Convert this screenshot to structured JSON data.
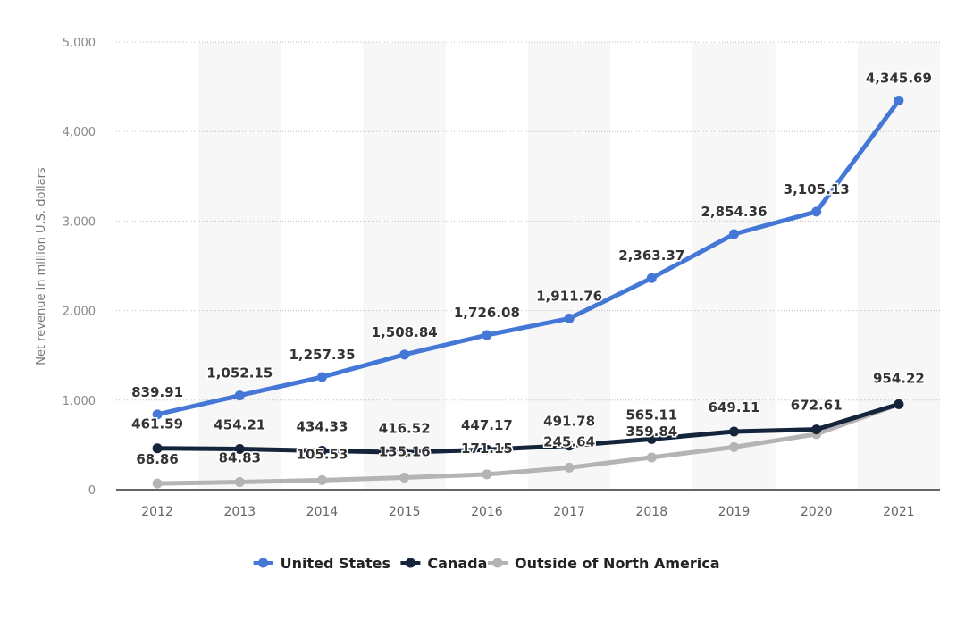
{
  "chart_data": {
    "type": "line",
    "title": "",
    "xlabel": "",
    "ylabel": "Net revenue in million U.S. dollars",
    "categories": [
      "2012",
      "2013",
      "2014",
      "2015",
      "2016",
      "2017",
      "2018",
      "2019",
      "2020",
      "2021"
    ],
    "ylim": [
      0,
      5000
    ],
    "yticks": [
      0,
      1000,
      2000,
      3000,
      4000,
      5000
    ],
    "ytick_labels": [
      "0",
      "1,000",
      "2,000",
      "3,000",
      "4,000",
      "5,000"
    ],
    "grid": true,
    "legend_position": "bottom-center",
    "series": [
      {
        "name": "United States",
        "color": "#4477d6",
        "values": [
          839.91,
          1052.15,
          1257.35,
          1508.84,
          1726.08,
          1911.76,
          2363.37,
          2854.36,
          3105.13,
          4345.69
        ],
        "labels": [
          "839.91",
          "1,052.15",
          "1,257.35",
          "1,508.84",
          "1,726.08",
          "1,911.76",
          "2,363.37",
          "2,854.36",
          "3,105.13",
          "4,345.69"
        ]
      },
      {
        "name": "Canada",
        "color": "#14243a",
        "values": [
          461.59,
          454.21,
          434.33,
          416.52,
          447.17,
          491.78,
          565.11,
          649.11,
          672.61,
          954.22
        ],
        "labels": [
          "461.59",
          "454.21",
          "434.33",
          "416.52",
          "447.17",
          "491.78",
          "565.11",
          "649.11",
          "672.61",
          "954.22"
        ]
      },
      {
        "name": "Outside of North America",
        "color": "#b4b4b4",
        "values": [
          68.86,
          84.83,
          105.53,
          135.16,
          171.15,
          245.64,
          359.84,
          475,
          620,
          954.22
        ],
        "labels": [
          "68.86",
          "84.83",
          "105.53",
          "135.16",
          "171.15",
          "245.64",
          "359.84",
          "",
          "",
          ""
        ]
      }
    ]
  }
}
